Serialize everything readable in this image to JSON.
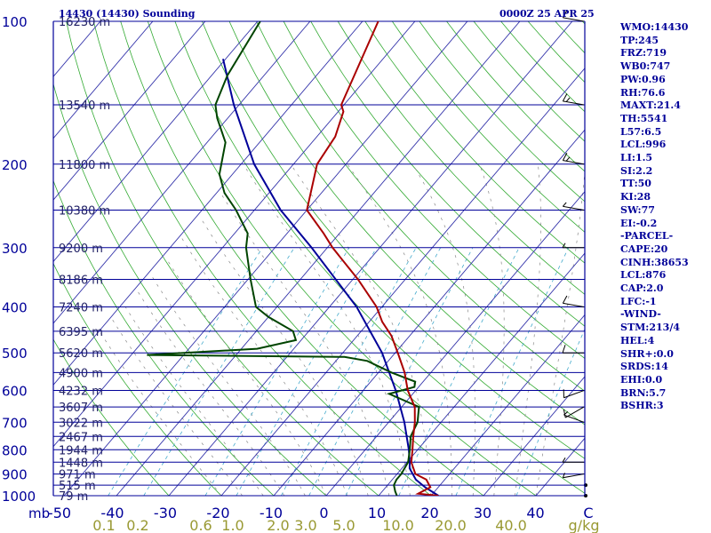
{
  "header": {
    "station": "14430 (14430) Sounding",
    "time": "0000Z 25 APR 25"
  },
  "indices": [
    "WMO:14430",
    "TP:245",
    "FRZ:719",
    "WB0:747",
    "PW:0.96",
    "RH:76.6",
    "MAXT:21.4",
    "TH:5541",
    "L57:6.5",
    "LCL:996",
    "LI:1.5",
    "SI:2.2",
    "TT:50",
    "KI:28",
    "SW:77",
    "EI:-0.2",
    "-PARCEL-",
    "CAPE:20",
    "CINH:38653",
    "LCL:876",
    "CAP:2.0",
    "LFC:-1",
    "-WIND-",
    "STM:213/4",
    "HEL:4",
    "SHR+:0.0",
    "SRDS:14",
    "EHI:0.0",
    "BRN:5.7",
    "BSHR:3"
  ],
  "colors": {
    "isobar": "#000099",
    "isotherm": "#3333aa",
    "dry_adiabat": "#33aa33",
    "moist_adiabat": "#888888",
    "mixing_ratio": "#44aacc",
    "temperature": "#aa0000",
    "dewpoint": "#004400",
    "parcel": "#000099",
    "mixing_ratio_label": "#999933",
    "text": "#000099"
  },
  "chart_data": {
    "type": "skew-t",
    "axes": {
      "pressure_unit": "mb",
      "temperature_unit": "C",
      "mixing_ratio_unit": "g/kg",
      "pressure_range": [
        1000,
        100
      ],
      "temperature_range": [
        -50,
        50
      ]
    },
    "pressure_ticks": [
      "100",
      "200",
      "300",
      "400",
      "500",
      "600",
      "700",
      "800",
      "900",
      "1000"
    ],
    "temperature_ticks": [
      "-50",
      "-40",
      "-30",
      "-20",
      "-10",
      "0",
      "10",
      "20",
      "30",
      "40",
      "C"
    ],
    "mixing_ratio_ticks": [
      "0.1",
      "0.2",
      "0.6",
      "1.0",
      "2.0",
      "3.0",
      "5.0",
      "10.0",
      "20.0",
      "40.0",
      "g/kg"
    ],
    "height_labels": [
      {
        "p": 100,
        "label": "16230 m"
      },
      {
        "p": 150,
        "label": "13540 m"
      },
      {
        "p": 200,
        "label": "11800 m"
      },
      {
        "p": 250,
        "label": "10380 m"
      },
      {
        "p": 300,
        "label": "9200 m"
      },
      {
        "p": 350,
        "label": "8186 m"
      },
      {
        "p": 400,
        "label": "7240 m"
      },
      {
        "p": 450,
        "label": "6395 m"
      },
      {
        "p": 500,
        "label": "5620 m"
      },
      {
        "p": 550,
        "label": "4900 m"
      },
      {
        "p": 600,
        "label": "4232 m"
      },
      {
        "p": 650,
        "label": "3607 m"
      },
      {
        "p": 700,
        "label": "3022 m"
      },
      {
        "p": 750,
        "label": "2467 m"
      },
      {
        "p": 800,
        "label": "1944 m"
      },
      {
        "p": 850,
        "label": "1448 m"
      },
      {
        "p": 900,
        "label": "971 m"
      },
      {
        "p": 950,
        "label": "515 m"
      },
      {
        "p": 1000,
        "label": "79 m"
      }
    ],
    "temperature_profile": [
      [
        1000,
        21.4
      ],
      [
        990,
        17.2
      ],
      [
        960,
        18.5
      ],
      [
        925,
        16.5
      ],
      [
        900,
        13.5
      ],
      [
        850,
        10.8
      ],
      [
        800,
        9.0
      ],
      [
        750,
        7.0
      ],
      [
        700,
        5.0
      ],
      [
        650,
        2.5
      ],
      [
        600,
        -1.5
      ],
      [
        550,
        -5.0
      ],
      [
        500,
        -9.5
      ],
      [
        460,
        -13.5
      ],
      [
        430,
        -17.5
      ],
      [
        400,
        -21.0
      ],
      [
        350,
        -29.0
      ],
      [
        300,
        -39.0
      ],
      [
        280,
        -43.0
      ],
      [
        250,
        -50.0
      ],
      [
        200,
        -55.5
      ],
      [
        175,
        -56.5
      ],
      [
        155,
        -59.0
      ],
      [
        150,
        -60.5
      ],
      [
        100,
        -67.0
      ]
    ],
    "dewpoint_profile": [
      [
        1000,
        13.5
      ],
      [
        980,
        12.5
      ],
      [
        950,
        11.2
      ],
      [
        925,
        10.8
      ],
      [
        900,
        10.8
      ],
      [
        850,
        10.2
      ],
      [
        800,
        8.5
      ],
      [
        750,
        6.5
      ],
      [
        700,
        5.5
      ],
      [
        650,
        3.3
      ],
      [
        610,
        -4.5
      ],
      [
        590,
        -0.8
      ],
      [
        575,
        -1.5
      ],
      [
        550,
        -7.5
      ],
      [
        520,
        -14.0
      ],
      [
        510,
        -19.0
      ],
      [
        505,
        -57.0
      ],
      [
        490,
        -37.0
      ],
      [
        470,
        -31.0
      ],
      [
        450,
        -33.0
      ],
      [
        420,
        -40.0
      ],
      [
        400,
        -44.0
      ],
      [
        350,
        -49.5
      ],
      [
        300,
        -55.5
      ],
      [
        280,
        -57.5
      ],
      [
        250,
        -63.5
      ],
      [
        230,
        -68.5
      ],
      [
        210,
        -72.5
      ],
      [
        180,
        -76.5
      ],
      [
        160,
        -82.0
      ],
      [
        150,
        -84.5
      ],
      [
        130,
        -87.0
      ],
      [
        100,
        -89.5
      ]
    ],
    "parcel_profile": [
      [
        1000,
        21.4
      ],
      [
        960,
        17.5
      ],
      [
        925,
        14.5
      ],
      [
        876,
        11.5
      ],
      [
        850,
        10.5
      ],
      [
        800,
        8.3
      ],
      [
        700,
        3.0
      ],
      [
        600,
        -3.8
      ],
      [
        500,
        -12.5
      ],
      [
        400,
        -24.8
      ],
      [
        300,
        -43.0
      ],
      [
        250,
        -55.0
      ],
      [
        200,
        -67.5
      ],
      [
        150,
        -81.0
      ],
      [
        120,
        -90.5
      ]
    ],
    "wind_barbs": [
      {
        "p": 1000,
        "dir": 0,
        "spd": 0
      },
      {
        "p": 950,
        "dir": 180,
        "spd": 0
      },
      {
        "p": 900,
        "dir": 260,
        "spd": 5
      },
      {
        "p": 850,
        "dir": 270,
        "spd": 5
      },
      {
        "p": 700,
        "dir": 290,
        "spd": 5
      },
      {
        "p": 650,
        "dir": 240,
        "spd": 10
      },
      {
        "p": 600,
        "dir": 250,
        "spd": 10
      },
      {
        "p": 500,
        "dir": 270,
        "spd": 10
      },
      {
        "p": 400,
        "dir": 280,
        "spd": 10
      },
      {
        "p": 300,
        "dir": 270,
        "spd": 5
      },
      {
        "p": 250,
        "dir": 280,
        "spd": 5
      },
      {
        "p": 200,
        "dir": 280,
        "spd": 15
      },
      {
        "p": 150,
        "dir": 280,
        "spd": 15
      },
      {
        "p": 100,
        "dir": 280,
        "spd": 10
      }
    ]
  }
}
